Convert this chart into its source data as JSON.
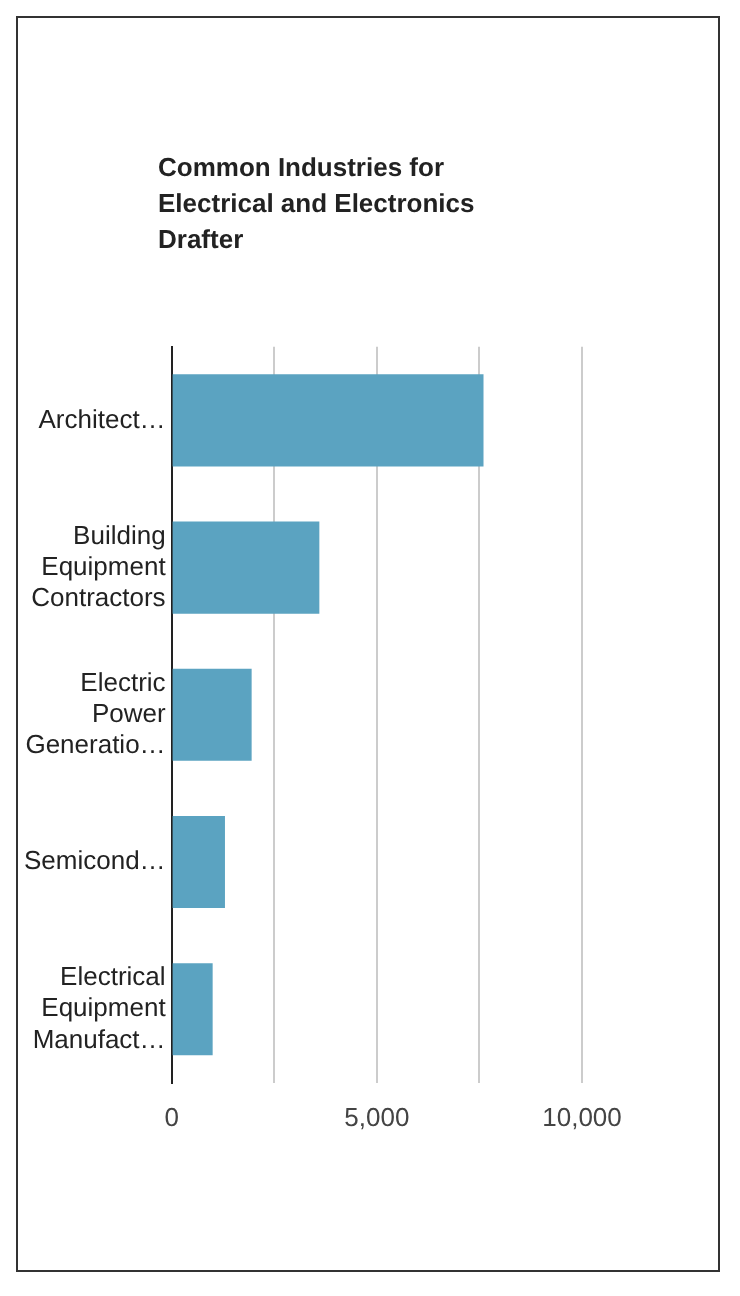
{
  "chart_data": {
    "type": "bar",
    "orientation": "horizontal",
    "title": "Common Industries for Electrical and Electronics Drafter",
    "categories": [
      "Architect…",
      "Building Equipment Contractors",
      "Electric Power Generatio…",
      "Semicond…",
      "Electrical Equipment Manufact…"
    ],
    "values": [
      7600,
      3600,
      1950,
      1300,
      1000
    ],
    "color": "#5ba3c1",
    "xlim": [
      0,
      10000
    ],
    "xticks": [
      0,
      {
        "value": 2500,
        "label": null
      },
      {
        "value": 5000,
        "label": "5,000"
      },
      {
        "value": 7500,
        "label": null
      },
      {
        "value": 10000,
        "label": "10,000"
      }
    ],
    "grid": "x",
    "legend": false
  }
}
